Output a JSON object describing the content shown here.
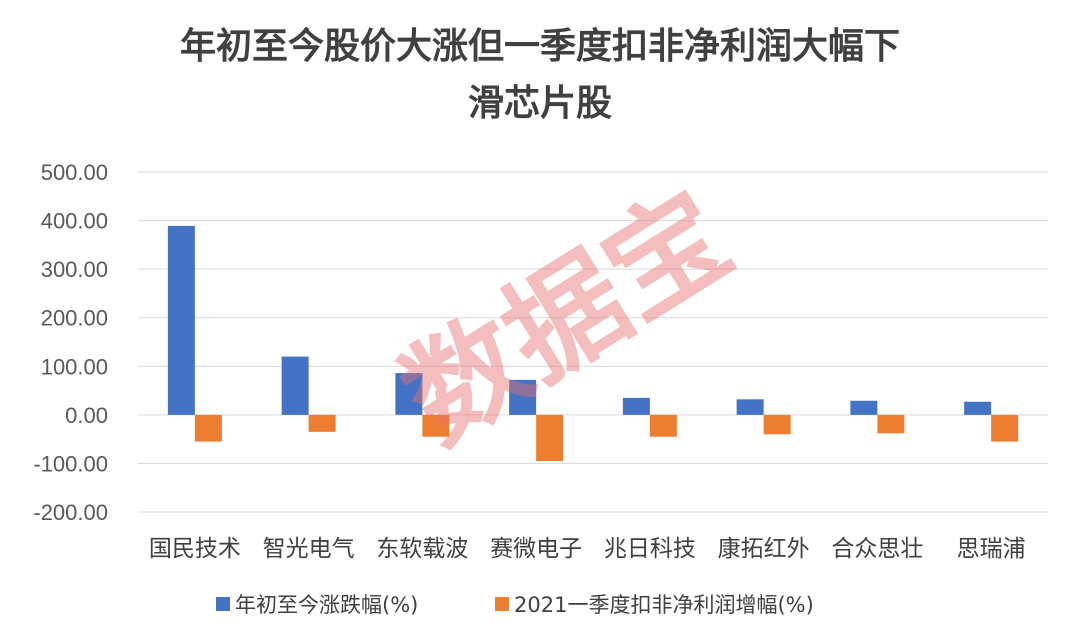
{
  "watermark": "数据宝",
  "colors": {
    "series1": "#4472c4",
    "series2": "#ed7d31",
    "watermark": "#e87070"
  },
  "chart_data": {
    "type": "bar",
    "title_lines": [
      "年初至今股价大涨但一季度扣非净利润大幅下",
      "滑芯片股"
    ],
    "categories": [
      "国民技术",
      "智光电气",
      "东软载波",
      "赛微电子",
      "兆日科技",
      "康拓红外",
      "合众思壮",
      "思瑞浦"
    ],
    "series": [
      {
        "name": "年初至今涨跌幅(%)",
        "values": [
          389,
          120,
          86,
          72,
          35,
          32,
          29,
          27
        ]
      },
      {
        "name": "2021一季度扣非净利润增幅(%)",
        "values": [
          -55,
          -35,
          -45,
          -95,
          -45,
          -40,
          -38,
          -55
        ]
      }
    ],
    "ylim": [
      -200,
      500
    ],
    "yticks": [
      "500.00",
      "400.00",
      "300.00",
      "200.00",
      "100.00",
      "0.00",
      "-100.00",
      "-200.00"
    ],
    "legend": "bottom",
    "grid": true
  }
}
